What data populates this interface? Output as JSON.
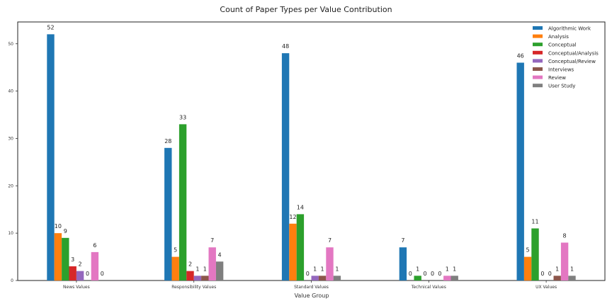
{
  "chart_data": {
    "type": "bar",
    "title": "Count of Paper Types per Value Contribution",
    "xlabel": "Value Group",
    "ylabel": "",
    "ylim": [
      0,
      54.6
    ],
    "yticks": [
      0,
      10,
      20,
      30,
      40,
      50
    ],
    "grid": false,
    "legend_position": "top-right",
    "categories": [
      "News Values",
      "Responsibility Values",
      "Standard Values",
      "Technical Values",
      "UX Values"
    ],
    "series": [
      {
        "name": "Algorithmic Work",
        "color": "#1f77b4",
        "values": [
          52,
          28,
          48,
          7,
          46
        ]
      },
      {
        "name": "Analysis",
        "color": "#ff7f0e",
        "values": [
          10,
          5,
          12,
          0,
          5
        ]
      },
      {
        "name": "Conceptual",
        "color": "#2ca02c",
        "values": [
          9,
          33,
          14,
          1,
          11
        ]
      },
      {
        "name": "Conceptual/Analysis",
        "color": "#d62728",
        "values": [
          3,
          2,
          0,
          0,
          0
        ]
      },
      {
        "name": "Conceptual/Review",
        "color": "#9467bd",
        "values": [
          2,
          1,
          1,
          0,
          0
        ]
      },
      {
        "name": "Interviews",
        "color": "#8c564b",
        "values": [
          0,
          1,
          1,
          0,
          1
        ]
      },
      {
        "name": "Review",
        "color": "#e377c2",
        "values": [
          6,
          7,
          7,
          1,
          8
        ]
      },
      {
        "name": "User Study",
        "color": "#7f7f7f",
        "values": [
          0,
          4,
          1,
          1,
          1
        ]
      }
    ]
  }
}
